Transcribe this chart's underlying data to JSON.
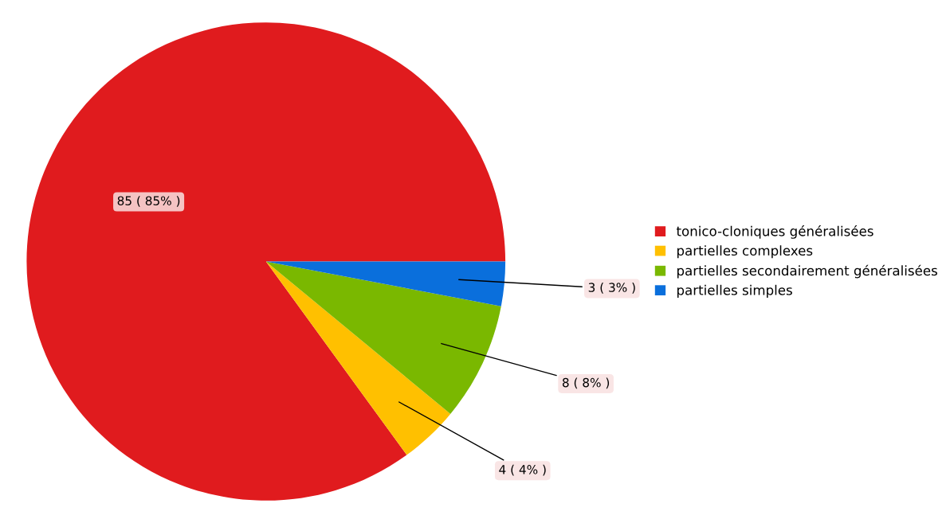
{
  "chart_data": {
    "type": "pie",
    "categories": [
      "tonico-cloniques généralisées",
      "partielles complexes",
      "partielles secondairement généralisées",
      "partielles simples"
    ],
    "values": [
      85,
      4,
      8,
      3
    ],
    "colors": [
      "#e01b1e",
      "#ffc000",
      "#7ab800",
      "#0a6fdc"
    ],
    "value_labels": [
      "85 ( 85% )",
      "4 ( 4% )",
      "8 ( 8% )",
      "3 ( 3% )"
    ],
    "legend": "right"
  }
}
